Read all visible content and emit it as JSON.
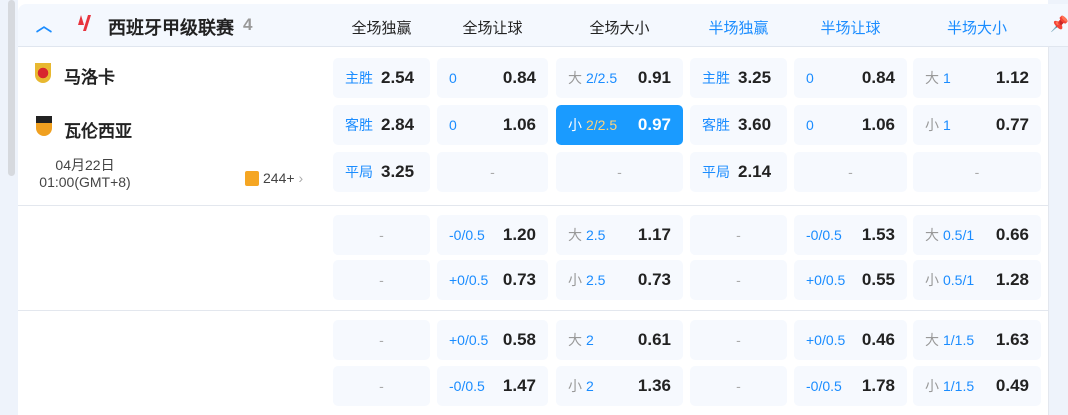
{
  "league": {
    "name": "西班牙甲级联赛",
    "count": "4"
  },
  "columns": [
    {
      "label": "全场独赢",
      "color": "#222222"
    },
    {
      "label": "全场让球",
      "color": "#222222"
    },
    {
      "label": "全场大小",
      "color": "#222222"
    },
    {
      "label": "半场独赢",
      "color": "#1a8cff"
    },
    {
      "label": "半场让球",
      "color": "#1a8cff"
    },
    {
      "label": "半场大小",
      "color": "#1a8cff"
    }
  ],
  "match": {
    "home": "马洛卡",
    "away": "瓦伦西亚",
    "date": "04月22日",
    "time": "01:00(GMT+8)",
    "markets_count": "244+"
  },
  "rows": [
    [
      {
        "l": "主胜",
        "v": "2.54"
      },
      {
        "l": "0",
        "v": "0.84"
      },
      {
        "p": "大",
        "l": "2/2.5",
        "v": "0.91"
      },
      {
        "l": "主胜",
        "v": "3.25"
      },
      {
        "l": "0",
        "v": "0.84"
      },
      {
        "p": "大",
        "l": "1",
        "v": "1.12"
      }
    ],
    [
      {
        "l": "客胜",
        "v": "2.84"
      },
      {
        "l": "0",
        "v": "1.06"
      },
      {
        "p": "小",
        "l": "2/2.5",
        "v": "0.97",
        "selected": true
      },
      {
        "l": "客胜",
        "v": "3.60"
      },
      {
        "l": "0",
        "v": "1.06"
      },
      {
        "p": "小",
        "l": "1",
        "v": "0.77"
      }
    ],
    [
      {
        "l": "平局",
        "v": "3.25"
      },
      {
        "d": "-"
      },
      {
        "d": "-"
      },
      {
        "l": "平局",
        "v": "2.14"
      },
      {
        "d": "-"
      },
      {
        "d": "-"
      }
    ],
    [
      {
        "d": "-"
      },
      {
        "l": "-0/0.5",
        "v": "1.20"
      },
      {
        "p": "大",
        "l": "2.5",
        "v": "1.17"
      },
      {
        "d": "-"
      },
      {
        "l": "-0/0.5",
        "v": "1.53"
      },
      {
        "p": "大",
        "l": "0.5/1",
        "v": "0.66"
      }
    ],
    [
      {
        "d": "-"
      },
      {
        "l": "+0/0.5",
        "v": "0.73"
      },
      {
        "p": "小",
        "l": "2.5",
        "v": "0.73"
      },
      {
        "d": "-"
      },
      {
        "l": "+0/0.5",
        "v": "0.55"
      },
      {
        "p": "小",
        "l": "0.5/1",
        "v": "1.28"
      }
    ],
    [
      {
        "d": "-"
      },
      {
        "l": "+0/0.5",
        "v": "0.58"
      },
      {
        "p": "大",
        "l": "2",
        "v": "0.61"
      },
      {
        "d": "-"
      },
      {
        "l": "+0/0.5",
        "v": "0.46"
      },
      {
        "p": "大",
        "l": "1/1.5",
        "v": "1.63"
      }
    ],
    [
      {
        "d": "-"
      },
      {
        "l": "-0/0.5",
        "v": "1.47"
      },
      {
        "p": "小",
        "l": "2",
        "v": "1.36"
      },
      {
        "d": "-"
      },
      {
        "l": "-0/0.5",
        "v": "1.78"
      },
      {
        "p": "小",
        "l": "1/1.5",
        "v": "0.49"
      }
    ]
  ]
}
